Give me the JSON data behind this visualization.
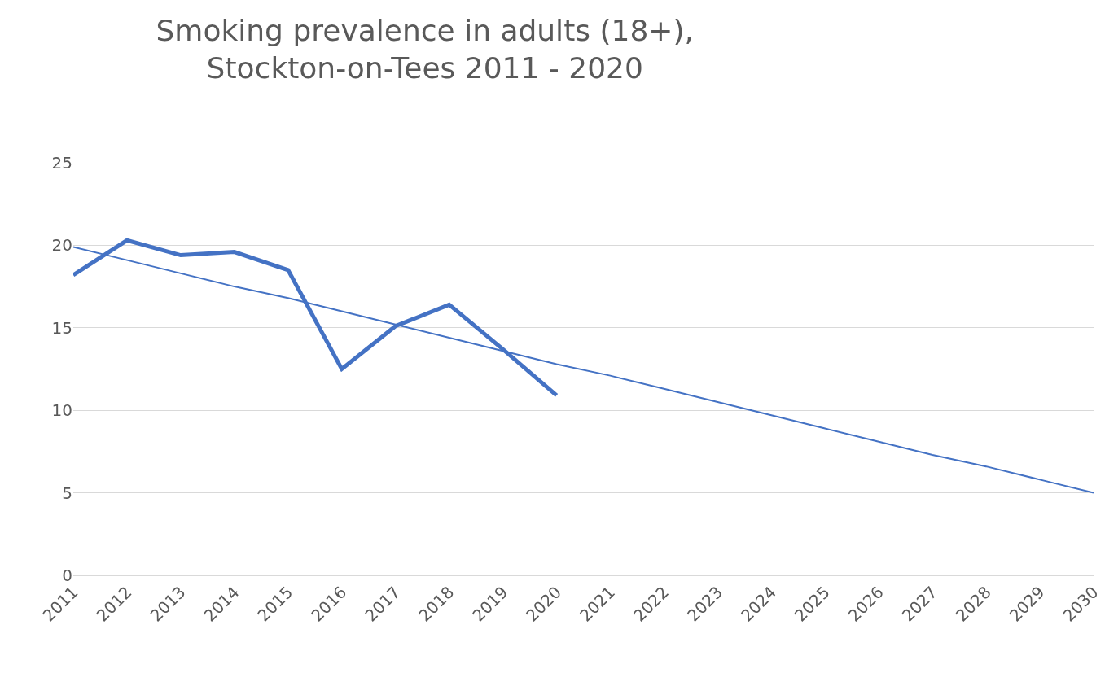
{
  "chart_data": {
    "type": "line",
    "title": "Smoking prevalence in adults (18+),\nStockton-on-Tees 2011 - 2020",
    "categories": [
      "2011",
      "2012",
      "2013",
      "2014",
      "2015",
      "2016",
      "2017",
      "2018",
      "2019",
      "2020",
      "2021",
      "2022",
      "2023",
      "2024",
      "2025",
      "2026",
      "2027",
      "2028",
      "2029",
      "2030"
    ],
    "series": [
      {
        "color": "#4472c4",
        "values": [
          18.2,
          20.3,
          19.4,
          19.6,
          18.5,
          12.5,
          15.1,
          16.4,
          13.7,
          10.9,
          null,
          null,
          null,
          null,
          null,
          null,
          null,
          null,
          null,
          null
        ]
      },
      {
        "type": "line",
        "color": "#4472c4",
        "values": [
          19.9,
          19.1,
          18.3,
          17.5,
          16.8,
          16.0,
          15.2,
          14.4,
          13.6,
          12.8,
          12.1,
          11.3,
          10.5,
          9.7,
          8.9,
          8.1,
          7.3,
          6.6,
          5.8,
          5.0
        ]
      }
    ],
    "ylim": [
      0,
      25
    ],
    "yticks": [
      0,
      5,
      10,
      15,
      20,
      25
    ],
    "grid": "y"
  }
}
